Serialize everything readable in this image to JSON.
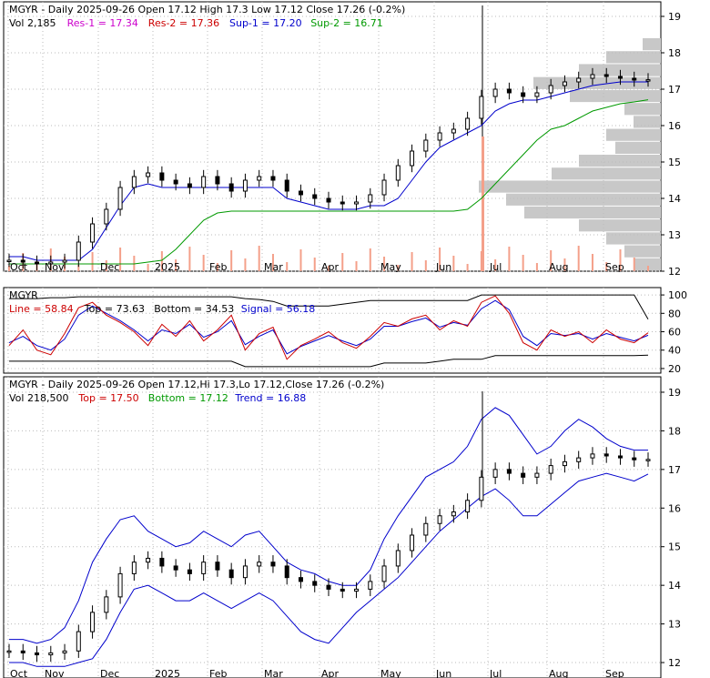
{
  "chart_data": [
    {
      "type": "line",
      "panel": "price",
      "title": "MGYR - Daily 2025-09-26 Open 17.12  High 17.3  Low 17.12  Close 17.26 (-0.2%)",
      "info_volume": "Vol 2,185",
      "legend": [
        {
          "label": "Res-1 = 17.34",
          "color": "#cc00cc"
        },
        {
          "label": "Res-2 = 17.36",
          "color": "#cc0000"
        },
        {
          "label": "Sup-1 = 17.20",
          "color": "#0000cc"
        },
        {
          "label": "Sup-2 = 16.71",
          "color": "#009900"
        }
      ],
      "x_labels": [
        "Oct",
        "Nov",
        "Dec",
        "2025",
        "Feb",
        "Mar",
        "Apr",
        "May",
        "Jun",
        "Jul",
        "Aug",
        "Sep"
      ],
      "y_ticks": [
        12,
        13,
        14,
        15,
        16,
        17,
        18,
        19
      ],
      "ylim": [
        12,
        19.4
      ],
      "series": [
        {
          "key": "close",
          "values": [
            12.3,
            12.25,
            12.2,
            12.25,
            12.3,
            12.8,
            13.3,
            13.7,
            14.3,
            14.6,
            14.7,
            14.5,
            14.4,
            14.3,
            14.6,
            14.4,
            14.2,
            14.5,
            14.6,
            14.5,
            14.2,
            14.1,
            14.0,
            13.9,
            13.85,
            13.9,
            14.1,
            14.5,
            14.9,
            15.3,
            15.6,
            15.8,
            15.9,
            16.2,
            16.8,
            17.0,
            16.9,
            16.8,
            16.9,
            17.1,
            17.2,
            17.3,
            17.4,
            17.35,
            17.3,
            17.25,
            17.26
          ]
        },
        {
          "key": "sup1",
          "values": [
            12.4,
            12.4,
            12.3,
            12.3,
            12.3,
            12.3,
            12.6,
            13.2,
            13.8,
            14.3,
            14.4,
            14.3,
            14.3,
            14.3,
            14.3,
            14.3,
            14.3,
            14.3,
            14.3,
            14.3,
            14.0,
            13.9,
            13.8,
            13.7,
            13.7,
            13.7,
            13.8,
            13.8,
            14.0,
            14.5,
            15.0,
            15.4,
            15.6,
            15.8,
            16.0,
            16.4,
            16.6,
            16.7,
            16.7,
            16.8,
            16.9,
            17.0,
            17.1,
            17.15,
            17.2,
            17.2,
            17.2
          ]
        },
        {
          "key": "sup2",
          "values": [
            12.2,
            12.2,
            12.2,
            12.2,
            12.2,
            12.2,
            12.2,
            12.2,
            12.2,
            12.2,
            12.25,
            12.3,
            12.6,
            13.0,
            13.4,
            13.6,
            13.65,
            13.65,
            13.65,
            13.65,
            13.65,
            13.65,
            13.65,
            13.65,
            13.65,
            13.65,
            13.65,
            13.65,
            13.65,
            13.65,
            13.65,
            13.65,
            13.65,
            13.7,
            14.0,
            14.4,
            14.8,
            15.2,
            15.6,
            15.9,
            16.0,
            16.2,
            16.4,
            16.5,
            16.6,
            16.65,
            16.71
          ]
        }
      ],
      "volume_profile": [
        2,
        6,
        9,
        14,
        10,
        4,
        3,
        6,
        5,
        9,
        12,
        20,
        17,
        15,
        9,
        6,
        4,
        3
      ]
    },
    {
      "type": "line",
      "panel": "oscillator",
      "title": "MGYR",
      "legend": [
        {
          "label": "Line = 58.84",
          "color": "#cc0000"
        },
        {
          "label": "Top = 73.63",
          "color": "#000000"
        },
        {
          "label": "Bottom = 34.53",
          "color": "#000000"
        },
        {
          "label": "Signal = 56.18",
          "color": "#0000cc"
        }
      ],
      "y_ticks": [
        20,
        40,
        60,
        80,
        100
      ],
      "ylim": [
        15,
        108
      ],
      "series": [
        {
          "key": "line",
          "values": [
            45,
            62,
            40,
            35,
            58,
            86,
            92,
            78,
            70,
            60,
            45,
            68,
            55,
            72,
            50,
            62,
            78,
            40,
            58,
            65,
            30,
            45,
            52,
            60,
            48,
            42,
            55,
            70,
            66,
            74,
            78,
            62,
            72,
            66,
            92,
            99,
            80,
            48,
            40,
            62,
            55,
            60,
            48,
            62,
            52,
            48,
            58.84
          ]
        },
        {
          "key": "signal",
          "values": [
            48,
            55,
            45,
            40,
            52,
            78,
            88,
            80,
            72,
            62,
            50,
            62,
            58,
            68,
            54,
            60,
            72,
            46,
            55,
            62,
            36,
            44,
            50,
            56,
            50,
            45,
            52,
            66,
            66,
            71,
            75,
            65,
            70,
            67,
            85,
            94,
            84,
            55,
            45,
            58,
            56,
            58,
            52,
            58,
            54,
            50,
            56.18
          ]
        },
        {
          "key": "top",
          "values": [
            96,
            96,
            96,
            97,
            97,
            98,
            98,
            98,
            98,
            98,
            98,
            98,
            98,
            98,
            98,
            98,
            98,
            96,
            95,
            93,
            88,
            88,
            88,
            88,
            90,
            92,
            94,
            94,
            94,
            94,
            94,
            94,
            94,
            94,
            100,
            100,
            100,
            100,
            100,
            100,
            100,
            100,
            100,
            100,
            100,
            100,
            73.63
          ]
        },
        {
          "key": "bottom",
          "values": [
            28,
            28,
            28,
            28,
            28,
            28,
            28,
            28,
            28,
            28,
            28,
            28,
            28,
            28,
            28,
            28,
            28,
            22,
            22,
            22,
            22,
            22,
            22,
            22,
            22,
            22,
            22,
            26,
            26,
            26,
            26,
            28,
            30,
            30,
            30,
            34,
            34,
            34,
            34,
            34,
            34,
            34,
            34,
            34,
            34,
            34,
            34.53
          ]
        }
      ]
    },
    {
      "type": "line",
      "panel": "price2",
      "title": "MGYR - Daily 2025-09-26 Open 17.12,Hi 17.3,Lo 17.12,Close 17.26 (-0.2%)",
      "info_volume": "Vol 218,500",
      "legend": [
        {
          "label": "Top = 17.50",
          "color": "#cc0000"
        },
        {
          "label": "Bottom = 17.12",
          "color": "#009900"
        },
        {
          "label": "Trend = 16.88",
          "color": "#0000cc"
        }
      ],
      "y_ticks": [
        12,
        13,
        14,
        15,
        16,
        17,
        18,
        19
      ],
      "ylim": [
        11.6,
        19.4
      ],
      "series": [
        {
          "key": "close",
          "values": [
            12.3,
            12.25,
            12.2,
            12.25,
            12.3,
            12.8,
            13.3,
            13.7,
            14.3,
            14.6,
            14.7,
            14.5,
            14.4,
            14.3,
            14.6,
            14.4,
            14.2,
            14.5,
            14.6,
            14.5,
            14.2,
            14.1,
            14.0,
            13.9,
            13.85,
            13.9,
            14.1,
            14.5,
            14.9,
            15.3,
            15.6,
            15.8,
            15.9,
            16.2,
            16.8,
            17.0,
            16.9,
            16.8,
            16.9,
            17.1,
            17.2,
            17.3,
            17.4,
            17.35,
            17.3,
            17.25,
            17.26
          ]
        },
        {
          "key": "band_upper",
          "values": [
            12.6,
            12.6,
            12.5,
            12.6,
            12.9,
            13.6,
            14.6,
            15.2,
            15.7,
            15.8,
            15.4,
            15.2,
            15.0,
            15.1,
            15.4,
            15.2,
            15.0,
            15.3,
            15.4,
            15.0,
            14.6,
            14.4,
            14.3,
            14.1,
            14.0,
            14.0,
            14.4,
            15.2,
            15.8,
            16.3,
            16.8,
            17.0,
            17.2,
            17.6,
            18.3,
            18.6,
            18.4,
            17.9,
            17.4,
            17.6,
            18.0,
            18.3,
            18.1,
            17.8,
            17.6,
            17.5,
            17.5
          ]
        },
        {
          "key": "band_lower",
          "values": [
            12.0,
            12.0,
            11.9,
            11.9,
            11.9,
            12.0,
            12.1,
            12.6,
            13.3,
            13.9,
            14.0,
            13.8,
            13.6,
            13.6,
            13.8,
            13.6,
            13.4,
            13.6,
            13.8,
            13.6,
            13.2,
            12.8,
            12.6,
            12.5,
            12.9,
            13.3,
            13.6,
            13.9,
            14.2,
            14.6,
            15.0,
            15.4,
            15.7,
            16.0,
            16.3,
            16.5,
            16.2,
            15.8,
            15.8,
            16.1,
            16.4,
            16.7,
            16.8,
            16.9,
            16.8,
            16.7,
            16.88
          ]
        }
      ]
    }
  ]
}
